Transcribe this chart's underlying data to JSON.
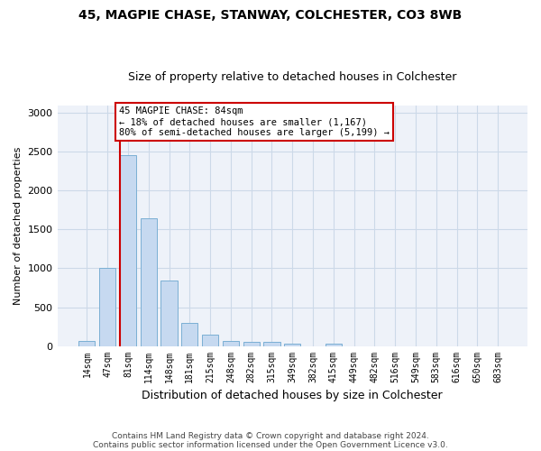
{
  "title1": "45, MAGPIE CHASE, STANWAY, COLCHESTER, CO3 8WB",
  "title2": "Size of property relative to detached houses in Colchester",
  "xlabel": "Distribution of detached houses by size in Colchester",
  "ylabel": "Number of detached properties",
  "categories": [
    "14sqm",
    "47sqm",
    "81sqm",
    "114sqm",
    "148sqm",
    "181sqm",
    "215sqm",
    "248sqm",
    "282sqm",
    "315sqm",
    "349sqm",
    "382sqm",
    "415sqm",
    "449sqm",
    "482sqm",
    "516sqm",
    "549sqm",
    "583sqm",
    "616sqm",
    "650sqm",
    "683sqm"
  ],
  "values": [
    60,
    1000,
    2460,
    1650,
    840,
    300,
    145,
    60,
    55,
    50,
    30,
    0,
    30,
    0,
    0,
    0,
    0,
    0,
    0,
    0,
    0
  ],
  "bar_color": "#c6d9f0",
  "bar_edge_color": "#7bafd4",
  "vline_color": "#cc0000",
  "vline_bar_index": 2,
  "annotation_text": "45 MAGPIE CHASE: 84sqm\n← 18% of detached houses are smaller (1,167)\n80% of semi-detached houses are larger (5,199) →",
  "annotation_box_color": "#cc0000",
  "grid_color": "#ccd9e8",
  "background_color": "#eef2f9",
  "ylim": [
    0,
    3100
  ],
  "yticks": [
    0,
    500,
    1000,
    1500,
    2000,
    2500,
    3000
  ],
  "footer1": "Contains HM Land Registry data © Crown copyright and database right 2024.",
  "footer2": "Contains public sector information licensed under the Open Government Licence v3.0."
}
